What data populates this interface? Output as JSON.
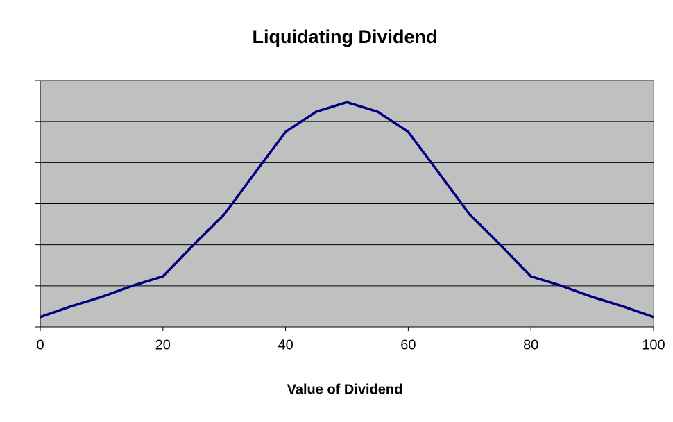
{
  "chart_data": {
    "type": "line",
    "title": "Liquidating Dividend",
    "x_label": "Value of Dividend",
    "x": [
      0,
      5,
      10,
      15,
      20,
      25,
      30,
      35,
      40,
      45,
      50,
      55,
      60,
      65,
      70,
      75,
      80,
      85,
      90,
      95,
      100
    ],
    "series": [
      {
        "color": "#000080",
        "values": [
          0.24,
          0.5,
          0.73,
          1.0,
          1.23,
          2.0,
          2.74,
          3.75,
          4.75,
          5.24,
          5.47,
          5.24,
          4.75,
          3.75,
          2.74,
          2.0,
          1.23,
          1.0,
          0.73,
          0.5,
          0.24
        ]
      }
    ],
    "xlim": [
      0,
      100
    ],
    "xticks": [
      0,
      20,
      40,
      60,
      80,
      100
    ],
    "ylim": [
      0,
      6
    ],
    "yticks": [
      0,
      1,
      2,
      3,
      4,
      5,
      6
    ],
    "ytick_labels": false,
    "grid": true,
    "plot_background": "#c0c0c0"
  }
}
